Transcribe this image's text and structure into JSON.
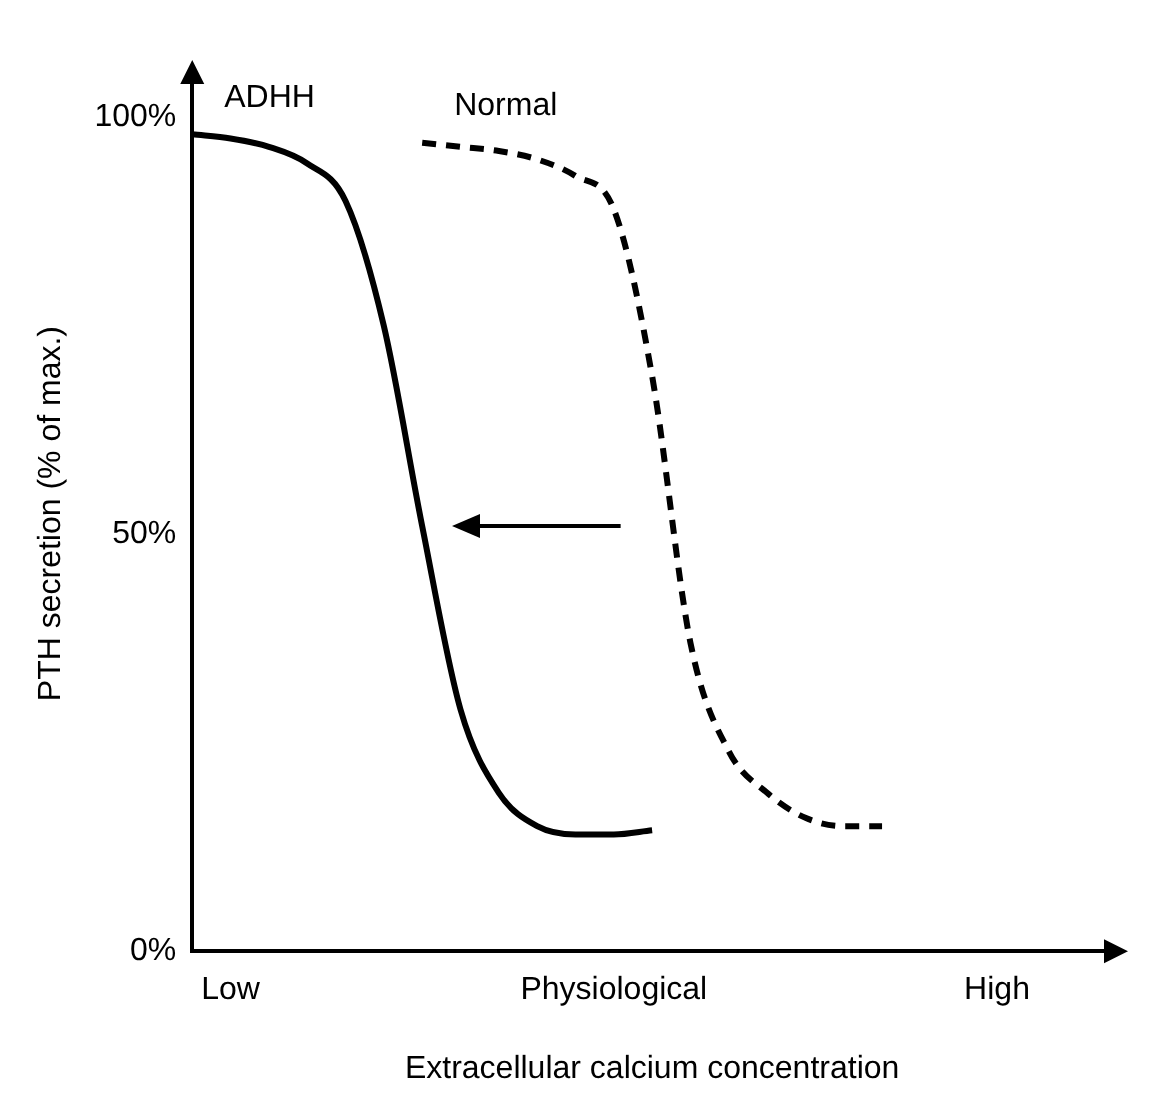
{
  "chart_data": {
    "type": "line",
    "xlabel": "Extracellular calcium concentration",
    "ylabel": "PTH secretion (% of max.)",
    "categories": [
      null,
      "Low",
      null,
      null,
      null,
      null,
      null,
      null,
      null,
      null,
      null,
      "Physiological",
      null,
      null,
      null,
      null,
      null,
      null,
      null,
      null,
      null,
      "High",
      null,
      null,
      null
    ],
    "ylim": [
      0,
      105
    ],
    "yticks": [
      {
        "value": 0,
        "label": "0%"
      },
      {
        "value": 50,
        "label": "50%"
      },
      {
        "value": 100,
        "label": "100%"
      }
    ],
    "grid": false,
    "marker": "none",
    "series": [
      {
        "name": "ADHH",
        "color": "#000000",
        "line_style": "solid",
        "values": [
          98,
          97.5,
          96.5,
          94.5,
          90,
          75,
          51,
          29,
          19,
          15,
          14,
          14,
          14.5,
          null,
          null,
          null,
          null,
          null,
          null,
          null,
          null,
          null,
          null,
          null,
          null
        ]
      },
      {
        "name": "Normal",
        "color": "#000000",
        "line_style": "dashed",
        "values": [
          null,
          null,
          null,
          null,
          null,
          null,
          97,
          96.5,
          96,
          95,
          93,
          89,
          69,
          37,
          24,
          19,
          16,
          15,
          15,
          null,
          null,
          null,
          null,
          null,
          null
        ]
      }
    ]
  }
}
